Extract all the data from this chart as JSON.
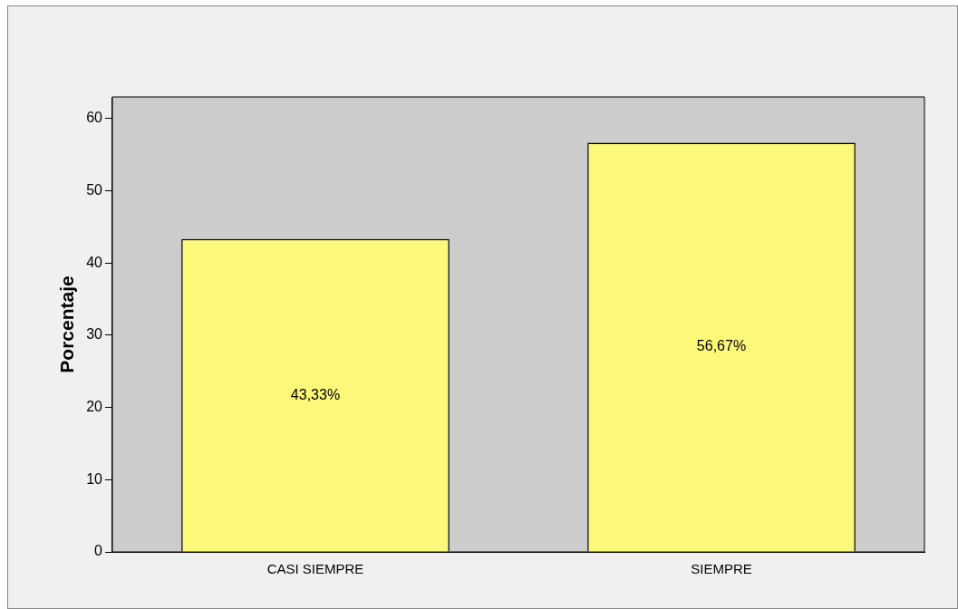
{
  "chart_data": {
    "type": "bar",
    "ylabel": "Porcentaje",
    "categories": [
      "CASI SIEMPRE",
      "SIEMPRE"
    ],
    "values": [
      43.33,
      56.67
    ],
    "value_labels": [
      "43,33%",
      "56,67%"
    ],
    "color": "#fcf87a",
    "ylim": [
      0,
      63
    ],
    "yticks": [
      0,
      10,
      20,
      30,
      40,
      50,
      60
    ],
    "grid": false
  }
}
